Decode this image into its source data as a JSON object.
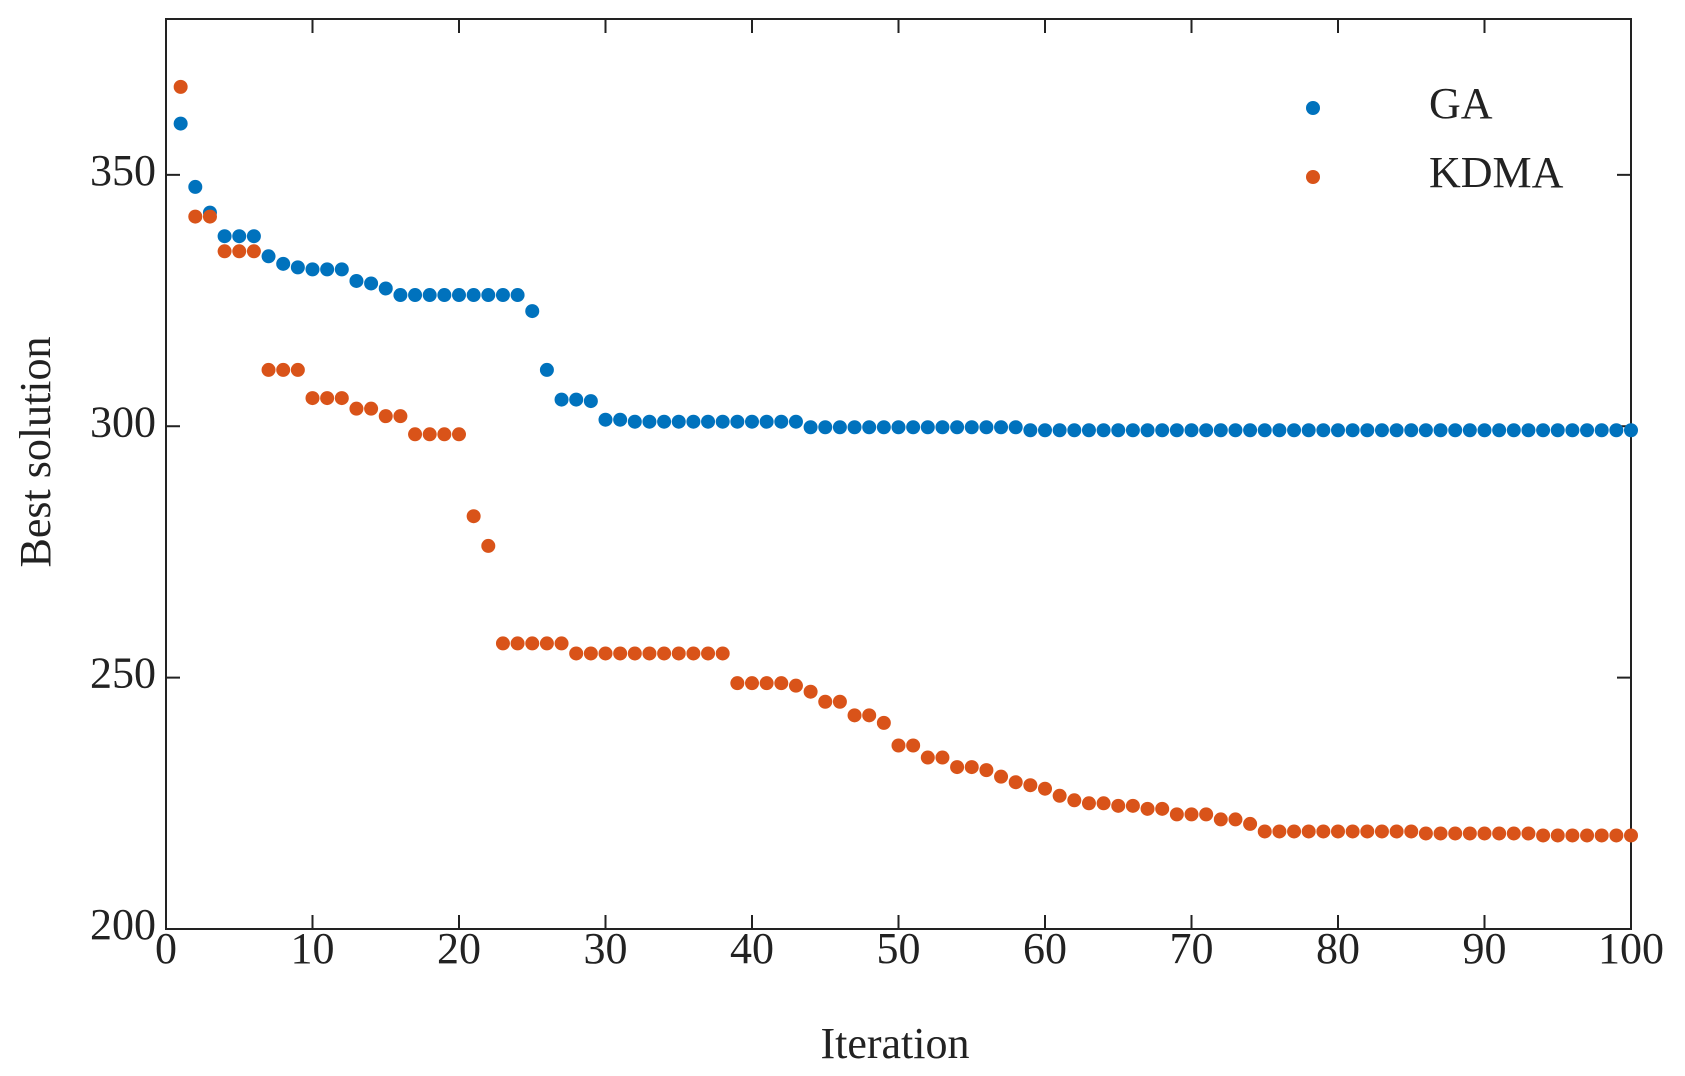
{
  "chart_data": {
    "type": "scatter",
    "xlabel": "Iteration",
    "ylabel": "Best solution",
    "x": [
      1,
      2,
      3,
      4,
      5,
      6,
      7,
      8,
      9,
      10,
      11,
      12,
      13,
      14,
      15,
      16,
      17,
      18,
      19,
      20,
      21,
      22,
      23,
      24,
      25,
      26,
      27,
      28,
      29,
      30,
      31,
      32,
      33,
      34,
      35,
      36,
      37,
      38,
      39,
      40,
      41,
      42,
      43,
      44,
      45,
      46,
      47,
      48,
      49,
      50,
      51,
      52,
      53,
      54,
      55,
      56,
      57,
      58,
      59,
      60,
      61,
      62,
      63,
      64,
      65,
      66,
      67,
      68,
      69,
      70,
      71,
      72,
      73,
      74,
      75,
      76,
      77,
      78,
      79,
      80,
      81,
      82,
      83,
      84,
      85,
      86,
      87,
      88,
      89,
      90,
      91,
      92,
      93,
      94,
      95,
      96,
      97,
      98,
      99,
      100
    ],
    "series": [
      {
        "name": "GA",
        "color": "#0072BD",
        "values": [
          360.2,
          347.6,
          342.5,
          337.8,
          337.8,
          337.8,
          333.8,
          332.3,
          331.6,
          331.2,
          331.2,
          331.2,
          328.9,
          328.4,
          327.4,
          326.1,
          326.1,
          326.1,
          326.1,
          326.1,
          326.1,
          326.1,
          326.1,
          326.1,
          322.9,
          311.2,
          305.3,
          305.3,
          305.0,
          301.3,
          301.3,
          300.9,
          300.9,
          300.9,
          300.9,
          300.9,
          300.9,
          300.9,
          300.9,
          300.9,
          300.9,
          300.9,
          300.9,
          299.8,
          299.8,
          299.8,
          299.8,
          299.8,
          299.8,
          299.8,
          299.8,
          299.8,
          299.8,
          299.8,
          299.8,
          299.8,
          299.8,
          299.8,
          299.2,
          299.2,
          299.2,
          299.2,
          299.2,
          299.2,
          299.2,
          299.2,
          299.2,
          299.2,
          299.2,
          299.2,
          299.2,
          299.2,
          299.2,
          299.2,
          299.2,
          299.2,
          299.2,
          299.2,
          299.2,
          299.2,
          299.2,
          299.2,
          299.2,
          299.2,
          299.2,
          299.2,
          299.2,
          299.2,
          299.2,
          299.2,
          299.2,
          299.2,
          299.2,
          299.2,
          299.2,
          299.2,
          299.2,
          299.2,
          299.2,
          299.2
        ]
      },
      {
        "name": "KDMA",
        "color": "#D95319",
        "values": [
          367.5,
          341.7,
          341.7,
          334.8,
          334.8,
          334.8,
          311.2,
          311.2,
          311.2,
          305.6,
          305.6,
          305.6,
          303.5,
          303.5,
          302.0,
          302.0,
          298.4,
          298.4,
          298.4,
          298.4,
          282.1,
          276.2,
          256.8,
          256.8,
          256.8,
          256.8,
          256.8,
          254.8,
          254.8,
          254.8,
          254.8,
          254.8,
          254.8,
          254.8,
          254.8,
          254.8,
          254.8,
          254.8,
          248.9,
          248.9,
          248.9,
          248.9,
          248.4,
          247.2,
          245.2,
          245.2,
          242.5,
          242.5,
          241.0,
          236.5,
          236.5,
          234.1,
          234.1,
          232.2,
          232.2,
          231.6,
          230.3,
          229.2,
          228.6,
          227.9,
          226.5,
          225.6,
          225.0,
          225.0,
          224.5,
          224.5,
          223.9,
          223.9,
          222.8,
          222.8,
          222.8,
          221.8,
          221.8,
          220.9,
          219.4,
          219.4,
          219.4,
          219.4,
          219.4,
          219.4,
          219.4,
          219.4,
          219.4,
          219.4,
          219.4,
          219.0,
          219.0,
          219.0,
          219.0,
          219.0,
          219.0,
          219.0,
          219.0,
          218.6,
          218.6,
          218.6,
          218.6,
          218.6,
          218.6,
          218.6
        ]
      }
    ],
    "xlim": [
      0,
      100
    ],
    "xticks": [
      0,
      10,
      20,
      30,
      40,
      50,
      60,
      70,
      80,
      90,
      100
    ],
    "ylim": [
      200,
      381
    ],
    "yticks": [
      200,
      250,
      300,
      350
    ],
    "grid": false,
    "legend": "upper right"
  }
}
